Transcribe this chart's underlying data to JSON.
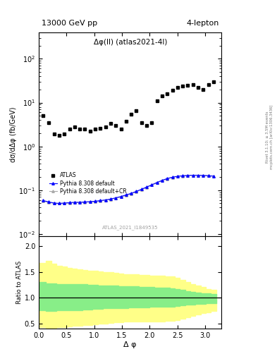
{
  "title_left": "13000 GeV pp",
  "title_right": "4-lepton",
  "plot_label": "Δφ(ll) (atlas2021-4l)",
  "watermark": "ATLAS_2021_I1849535",
  "xlabel": "Δ φ",
  "ylabel_main": "dσ/dΔφ (fb/GeV)",
  "ylabel_ratio": "Ratio to ATLAS",
  "right_label1": "Rivet 3.1.10; ≥ 3.5M events",
  "right_label2": "mcplots.cern.ch [arXiv:1306.3436]",
  "xlim": [
    0,
    3.3
  ],
  "ylim_main": [
    0.009,
    400
  ],
  "ylim_ratio": [
    0.4,
    2.2
  ],
  "atlas_x": [
    0.082,
    0.18,
    0.275,
    0.37,
    0.46,
    0.555,
    0.648,
    0.74,
    0.832,
    0.925,
    1.018,
    1.112,
    1.205,
    1.298,
    1.39,
    1.483,
    1.576,
    1.668,
    1.76,
    1.853,
    1.946,
    2.04,
    2.133,
    2.226,
    2.318,
    2.411,
    2.504,
    2.597,
    2.69,
    2.783,
    2.876,
    2.968,
    3.061,
    3.154
  ],
  "atlas_y": [
    5.0,
    3.5,
    1.9,
    1.8,
    1.9,
    2.5,
    2.8,
    2.5,
    2.5,
    2.2,
    2.5,
    2.6,
    2.8,
    3.3,
    3.0,
    2.5,
    3.8,
    5.5,
    6.5,
    3.5,
    3.0,
    3.5,
    11.0,
    14.0,
    16.0,
    19.0,
    22.0,
    24.0,
    25.0,
    26.0,
    22.0,
    20.0,
    26.0,
    30.0
  ],
  "py_x": [
    0.082,
    0.18,
    0.275,
    0.37,
    0.46,
    0.555,
    0.648,
    0.74,
    0.832,
    0.925,
    1.018,
    1.112,
    1.205,
    1.298,
    1.39,
    1.483,
    1.576,
    1.668,
    1.76,
    1.853,
    1.946,
    2.04,
    2.133,
    2.226,
    2.318,
    2.411,
    2.504,
    2.597,
    2.69,
    2.783,
    2.876,
    2.968,
    3.061,
    3.154
  ],
  "py_y": [
    0.058,
    0.054,
    0.051,
    0.05,
    0.051,
    0.052,
    0.053,
    0.053,
    0.054,
    0.055,
    0.056,
    0.058,
    0.06,
    0.063,
    0.067,
    0.072,
    0.078,
    0.085,
    0.094,
    0.105,
    0.118,
    0.133,
    0.15,
    0.168,
    0.185,
    0.198,
    0.208,
    0.214,
    0.218,
    0.22,
    0.22,
    0.218,
    0.215,
    0.21
  ],
  "py_cr_x": [
    0.082,
    0.18,
    0.275,
    0.37,
    0.46,
    0.555,
    0.648,
    0.74,
    0.832,
    0.925,
    1.018,
    1.112,
    1.205,
    1.298,
    1.39,
    1.483,
    1.576,
    1.668,
    1.76,
    1.853,
    1.946,
    2.04,
    2.133,
    2.226,
    2.318,
    2.411,
    2.504,
    2.597,
    2.69,
    2.783,
    2.876,
    2.968,
    3.061,
    3.154
  ],
  "py_cr_y": [
    0.056,
    0.053,
    0.05,
    0.05,
    0.05,
    0.051,
    0.052,
    0.052,
    0.053,
    0.054,
    0.055,
    0.057,
    0.059,
    0.062,
    0.066,
    0.07,
    0.076,
    0.083,
    0.092,
    0.103,
    0.116,
    0.131,
    0.148,
    0.165,
    0.182,
    0.196,
    0.206,
    0.212,
    0.216,
    0.218,
    0.218,
    0.217,
    0.213,
    0.208
  ],
  "green_band_upper": [
    1.3,
    1.28,
    1.28,
    1.27,
    1.27,
    1.27,
    1.26,
    1.26,
    1.26,
    1.25,
    1.25,
    1.24,
    1.24,
    1.23,
    1.23,
    1.22,
    1.22,
    1.22,
    1.22,
    1.21,
    1.21,
    1.21,
    1.2,
    1.2,
    1.19,
    1.18,
    1.17,
    1.15,
    1.13,
    1.11,
    1.1,
    1.09,
    1.08,
    1.07
  ],
  "green_band_lower": [
    0.76,
    0.74,
    0.74,
    0.75,
    0.75,
    0.75,
    0.76,
    0.76,
    0.77,
    0.77,
    0.78,
    0.78,
    0.79,
    0.79,
    0.8,
    0.8,
    0.8,
    0.81,
    0.81,
    0.81,
    0.81,
    0.82,
    0.82,
    0.82,
    0.83,
    0.83,
    0.84,
    0.85,
    0.86,
    0.87,
    0.88,
    0.88,
    0.89,
    0.89
  ],
  "yellow_band_upper": [
    1.68,
    1.72,
    1.66,
    1.62,
    1.6,
    1.58,
    1.56,
    1.55,
    1.54,
    1.53,
    1.52,
    1.51,
    1.5,
    1.49,
    1.48,
    1.47,
    1.46,
    1.45,
    1.45,
    1.44,
    1.44,
    1.43,
    1.43,
    1.43,
    1.42,
    1.41,
    1.39,
    1.35,
    1.31,
    1.27,
    1.23,
    1.21,
    1.17,
    1.15
  ],
  "yellow_band_lower": [
    0.42,
    0.4,
    0.41,
    0.42,
    0.43,
    0.44,
    0.45,
    0.46,
    0.47,
    0.47,
    0.48,
    0.49,
    0.5,
    0.51,
    0.52,
    0.52,
    0.53,
    0.53,
    0.53,
    0.54,
    0.54,
    0.54,
    0.54,
    0.54,
    0.55,
    0.55,
    0.57,
    0.59,
    0.62,
    0.65,
    0.68,
    0.7,
    0.72,
    0.74
  ],
  "bin_edges": [
    0.0,
    0.13,
    0.225,
    0.32,
    0.415,
    0.505,
    0.6,
    0.693,
    0.785,
    0.878,
    0.97,
    1.063,
    1.157,
    1.25,
    1.343,
    1.435,
    1.528,
    1.621,
    1.713,
    1.806,
    1.899,
    1.992,
    2.086,
    2.179,
    2.272,
    2.364,
    2.457,
    2.55,
    2.643,
    2.736,
    2.829,
    2.922,
    3.015,
    3.108,
    3.2
  ]
}
